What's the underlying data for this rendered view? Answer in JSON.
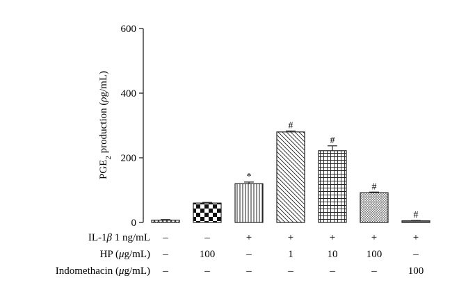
{
  "chart_data": {
    "type": "bar",
    "ylabel": {
      "prefix": "PGE",
      "subscript": "2",
      "suffix": " production (",
      "unit_symbol": "ρ",
      "unit_rest": "g/mL)"
    },
    "ylim": [
      0,
      600
    ],
    "yticks": [
      "0",
      "200",
      "400",
      "600"
    ],
    "grid": false,
    "values": [
      7,
      60,
      120,
      280,
      222,
      92,
      5
    ],
    "errors": [
      2,
      2,
      5,
      3,
      15,
      2,
      1
    ],
    "annotations": [
      "",
      "",
      "*",
      "#",
      "#",
      "#",
      "#"
    ],
    "patterns": [
      "diagonal-crosshatch",
      "checkerboard",
      "vertical-lines",
      "diagonal-lines",
      "grid",
      "fine-diagonal-crosshatch",
      "horizontal-lines"
    ],
    "treatment_table": [
      {
        "label_parts": [
          "IL-1",
          "β",
          " 1 ng/mL"
        ],
        "cells": [
          "–",
          "–",
          "+",
          "+",
          "+",
          "+",
          "+"
        ]
      },
      {
        "label_parts": [
          "HP (",
          "μ",
          "g/mL)"
        ],
        "cells": [
          "–",
          "100",
          "–",
          "1",
          "10",
          "100",
          "–"
        ]
      },
      {
        "label_parts": [
          "Indomethacin (",
          "μ",
          "g/mL)"
        ],
        "cells": [
          "–",
          "–",
          "–",
          "–",
          "–",
          "–",
          "100"
        ]
      }
    ]
  }
}
